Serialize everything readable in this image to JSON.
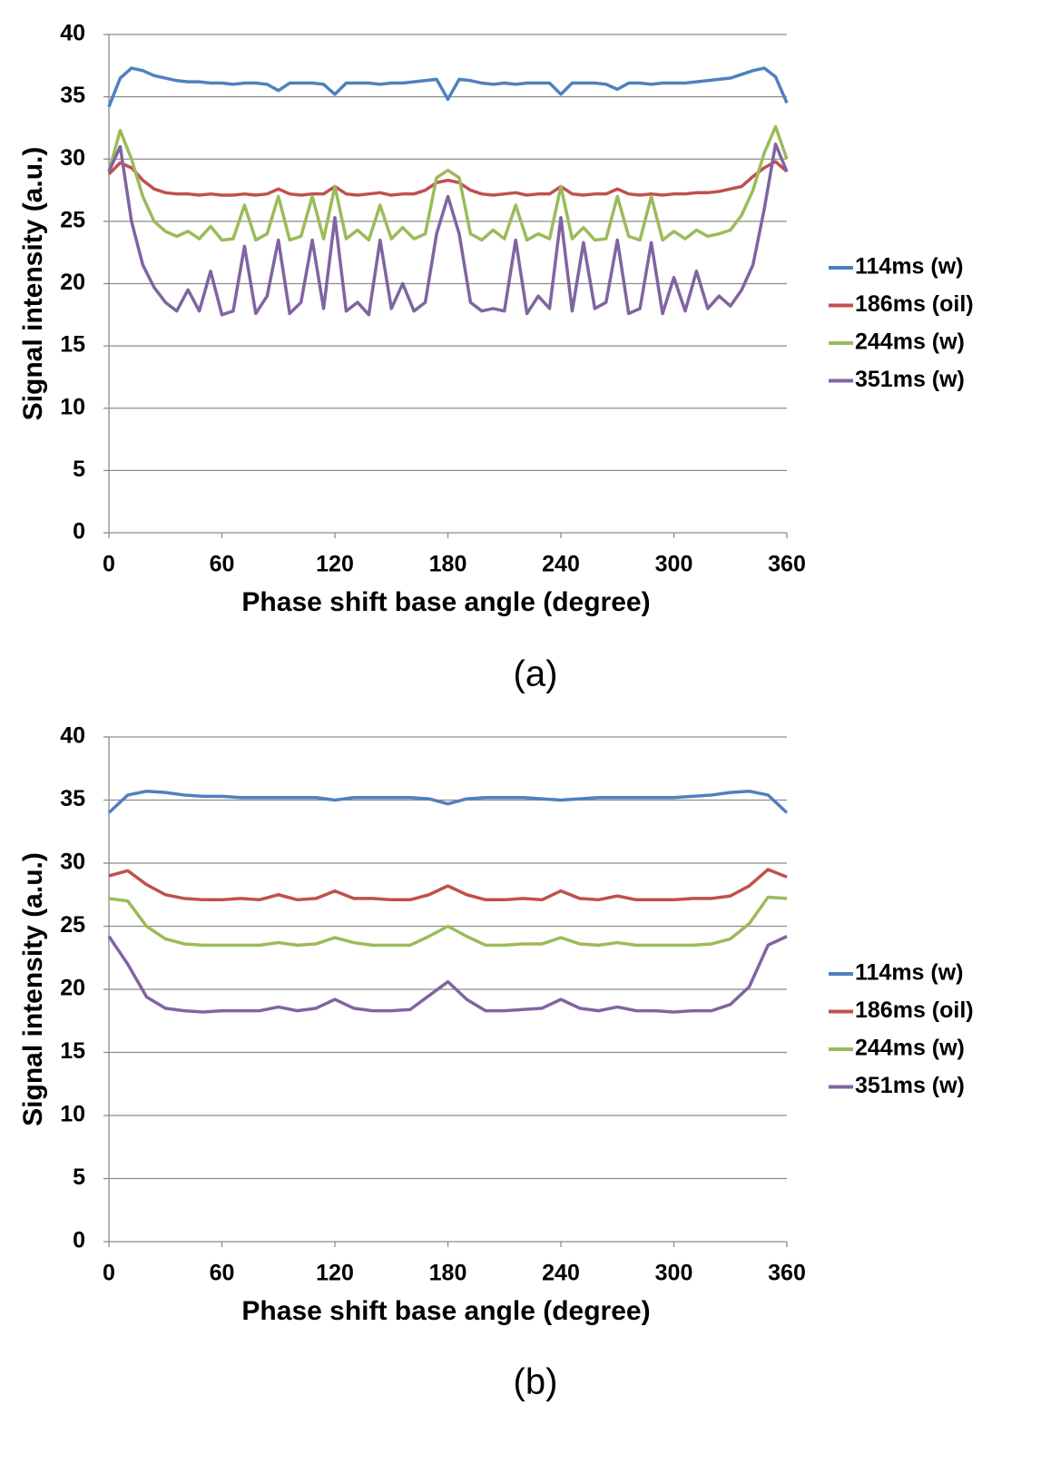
{
  "chart_data": [
    {
      "type": "line",
      "caption": "(a)",
      "x_label": "Phase shift base angle (degree)",
      "y_label": "Signal intensity (a.u.)",
      "x": [
        0,
        6,
        12,
        18,
        24,
        30,
        36,
        42,
        48,
        54,
        60,
        66,
        72,
        78,
        84,
        90,
        96,
        102,
        108,
        114,
        120,
        126,
        132,
        138,
        144,
        150,
        156,
        162,
        168,
        174,
        180,
        186,
        192,
        198,
        204,
        210,
        216,
        222,
        228,
        234,
        240,
        246,
        252,
        258,
        264,
        270,
        276,
        282,
        288,
        294,
        300,
        306,
        312,
        318,
        324,
        330,
        336,
        342,
        348,
        354,
        360
      ],
      "series": [
        {
          "name": "114ms (w)",
          "color": "#4f81bd",
          "values": [
            34.2,
            36.5,
            37.3,
            37.1,
            36.7,
            36.5,
            36.3,
            36.2,
            36.2,
            36.1,
            36.1,
            36.0,
            36.1,
            36.1,
            36.0,
            35.5,
            36.1,
            36.1,
            36.1,
            36.0,
            35.2,
            36.1,
            36.1,
            36.1,
            36.0,
            36.1,
            36.1,
            36.2,
            36.3,
            36.4,
            34.8,
            36.4,
            36.3,
            36.1,
            36.0,
            36.1,
            36.0,
            36.1,
            36.1,
            36.1,
            35.2,
            36.1,
            36.1,
            36.1,
            36.0,
            35.6,
            36.1,
            36.1,
            36.0,
            36.1,
            36.1,
            36.1,
            36.2,
            36.3,
            36.4,
            36.5,
            36.8,
            37.1,
            37.3,
            36.6,
            34.5
          ]
        },
        {
          "name": "186ms (oil)",
          "color": "#c0504d",
          "values": [
            28.8,
            29.7,
            29.3,
            28.3,
            27.6,
            27.3,
            27.2,
            27.2,
            27.1,
            27.2,
            27.1,
            27.1,
            27.2,
            27.1,
            27.2,
            27.6,
            27.2,
            27.1,
            27.2,
            27.2,
            27.8,
            27.2,
            27.1,
            27.2,
            27.3,
            27.1,
            27.2,
            27.2,
            27.5,
            28.1,
            28.3,
            28.1,
            27.5,
            27.2,
            27.1,
            27.2,
            27.3,
            27.1,
            27.2,
            27.2,
            27.8,
            27.2,
            27.1,
            27.2,
            27.2,
            27.6,
            27.2,
            27.1,
            27.2,
            27.1,
            27.2,
            27.2,
            27.3,
            27.3,
            27.4,
            27.6,
            27.8,
            28.6,
            29.3,
            29.8,
            29.0
          ]
        },
        {
          "name": "244ms (w)",
          "color": "#9bbb59",
          "values": [
            29,
            32.3,
            30,
            27,
            25,
            24.2,
            23.8,
            24.2,
            23.6,
            24.6,
            23.5,
            23.6,
            26.3,
            23.5,
            24,
            27,
            23.5,
            23.8,
            27,
            23.6,
            27.8,
            23.6,
            24.3,
            23.5,
            26.3,
            23.6,
            24.5,
            23.6,
            24,
            28.5,
            29.1,
            28.5,
            24,
            23.5,
            24.3,
            23.6,
            26.3,
            23.5,
            24,
            23.6,
            27.8,
            23.6,
            24.5,
            23.5,
            23.6,
            27,
            23.8,
            23.5,
            27,
            23.5,
            24.2,
            23.6,
            24.3,
            23.8,
            24,
            24.3,
            25.5,
            27.5,
            30.5,
            32.6,
            30
          ]
        },
        {
          "name": "351ms (w)",
          "color": "#8064a2",
          "values": [
            29,
            31,
            25,
            21.5,
            19.7,
            18.5,
            17.8,
            19.5,
            17.8,
            21,
            17.5,
            17.8,
            23,
            17.6,
            19,
            23.5,
            17.6,
            18.5,
            23.5,
            18,
            25.3,
            17.8,
            18.5,
            17.5,
            23.5,
            18,
            20,
            17.8,
            18.5,
            24,
            27,
            24,
            18.5,
            17.8,
            18,
            17.8,
            23.5,
            17.6,
            19,
            18,
            25.3,
            17.8,
            23.3,
            18,
            18.5,
            23.5,
            17.6,
            18,
            23.3,
            17.6,
            20.5,
            17.8,
            21,
            18,
            19,
            18.2,
            19.5,
            21.5,
            26,
            31.2,
            29
          ]
        }
      ],
      "xlim": [
        0,
        360
      ],
      "xticks": [
        0,
        60,
        120,
        180,
        240,
        300,
        360
      ],
      "ylim": [
        0,
        40
      ],
      "yticks": [
        0,
        5,
        10,
        15,
        20,
        25,
        30,
        35,
        40
      ],
      "grid": true,
      "legend": "right"
    },
    {
      "type": "line",
      "caption": "(b)",
      "x_label": "Phase shift base angle (degree)",
      "y_label": "Signal intensity (a.u.)",
      "x": [
        0,
        10,
        20,
        30,
        40,
        50,
        60,
        70,
        80,
        90,
        100,
        110,
        120,
        130,
        140,
        150,
        160,
        170,
        180,
        190,
        200,
        210,
        220,
        230,
        240,
        250,
        260,
        270,
        280,
        290,
        300,
        310,
        320,
        330,
        340,
        350,
        360
      ],
      "series": [
        {
          "name": "114ms (w)",
          "color": "#4f81bd",
          "values": [
            34,
            35.4,
            35.7,
            35.6,
            35.4,
            35.3,
            35.3,
            35.2,
            35.2,
            35.2,
            35.2,
            35.2,
            35.0,
            35.2,
            35.2,
            35.2,
            35.2,
            35.1,
            34.7,
            35.1,
            35.2,
            35.2,
            35.2,
            35.1,
            35.0,
            35.1,
            35.2,
            35.2,
            35.2,
            35.2,
            35.2,
            35.3,
            35.4,
            35.6,
            35.7,
            35.4,
            34
          ]
        },
        {
          "name": "186ms (oil)",
          "color": "#c0504d",
          "values": [
            29,
            29.4,
            28.3,
            27.5,
            27.2,
            27.1,
            27.1,
            27.2,
            27.1,
            27.5,
            27.1,
            27.2,
            27.8,
            27.2,
            27.2,
            27.1,
            27.1,
            27.5,
            28.2,
            27.5,
            27.1,
            27.1,
            27.2,
            27.1,
            27.8,
            27.2,
            27.1,
            27.4,
            27.1,
            27.1,
            27.1,
            27.2,
            27.2,
            27.4,
            28.2,
            29.5,
            28.9
          ]
        },
        {
          "name": "244ms (w)",
          "color": "#9bbb59",
          "values": [
            27.2,
            27,
            25,
            24,
            23.6,
            23.5,
            23.5,
            23.5,
            23.5,
            23.7,
            23.5,
            23.6,
            24.1,
            23.7,
            23.5,
            23.5,
            23.5,
            24.2,
            25,
            24.2,
            23.5,
            23.5,
            23.6,
            23.6,
            24.1,
            23.6,
            23.5,
            23.7,
            23.5,
            23.5,
            23.5,
            23.5,
            23.6,
            24,
            25.2,
            27.3,
            27.2
          ]
        },
        {
          "name": "351ms (w)",
          "color": "#8064a2",
          "values": [
            24.2,
            22,
            19.4,
            18.5,
            18.3,
            18.2,
            18.3,
            18.3,
            18.3,
            18.6,
            18.3,
            18.5,
            19.2,
            18.5,
            18.3,
            18.3,
            18.4,
            19.5,
            20.6,
            19.2,
            18.3,
            18.3,
            18.4,
            18.5,
            19.2,
            18.5,
            18.3,
            18.6,
            18.3,
            18.3,
            18.2,
            18.3,
            18.3,
            18.8,
            20.2,
            23.5,
            24.2
          ]
        }
      ],
      "xlim": [
        0,
        360
      ],
      "xticks": [
        0,
        60,
        120,
        180,
        240,
        300,
        360
      ],
      "ylim": [
        0,
        40
      ],
      "yticks": [
        0,
        5,
        10,
        15,
        20,
        25,
        30,
        35,
        40
      ],
      "grid": true,
      "legend": "right"
    }
  ]
}
